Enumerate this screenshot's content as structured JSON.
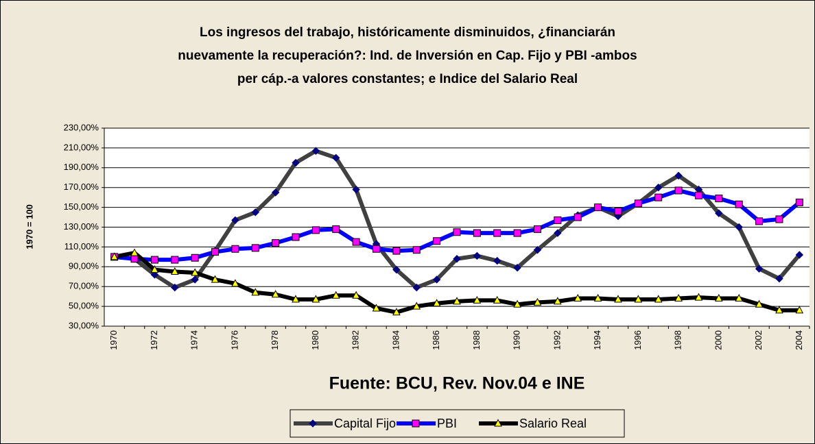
{
  "chart_data": {
    "type": "line",
    "title": [
      "Los ingresos del trabajo, históricamente disminuidos, ¿financiarán",
      "nuevamente la recuperación?: Ind. de Inversión en Cap. Fijo y PBI -ambos",
      "per cáp.-a valores constantes; e Indice del Salario Real"
    ],
    "y_label": "1970 = 100",
    "x_label": "Fuente: BCU, Rev. Nov.04 e INE",
    "categories": [
      "1970",
      null,
      "1972",
      null,
      "1974",
      null,
      "1976",
      null,
      "1978",
      null,
      "1980",
      null,
      "1982",
      null,
      "1984",
      null,
      "1986",
      null,
      "1988",
      null,
      "1990",
      null,
      "1992",
      null,
      "1994",
      null,
      "1996",
      null,
      "1998",
      null,
      "2000",
      null,
      "2002",
      null,
      "2004"
    ],
    "series": [
      {
        "name": "Capital Fijo",
        "color": "#404040",
        "marker": "diamond",
        "marker_color": "#000080",
        "values": [
          100,
          98,
          82,
          69,
          77,
          106,
          137,
          145,
          165,
          195,
          207,
          200,
          168,
          113,
          87,
          69,
          77,
          98,
          101,
          96,
          89,
          107,
          124,
          142,
          150,
          141,
          154,
          170,
          182,
          168,
          144,
          130,
          88,
          78,
          102
        ]
      },
      {
        "name": "PBI",
        "color": "#0000ff",
        "marker": "square",
        "marker_color": "#ff00ff",
        "values": [
          100,
          98,
          97,
          97,
          99,
          105,
          108,
          109,
          114,
          120,
          127,
          128,
          115,
          108,
          106,
          107,
          116,
          125,
          124,
          124,
          124,
          128,
          137,
          140,
          150,
          146,
          154,
          160,
          167,
          162,
          159,
          153,
          136,
          138,
          155
        ]
      },
      {
        "name": "Salario Real",
        "color": "#000000",
        "marker": "triangle",
        "marker_color": "#ffff00",
        "values": [
          100,
          104,
          87,
          85,
          84,
          77,
          73,
          64,
          62,
          57,
          57,
          61,
          61,
          48,
          44,
          50,
          53,
          55,
          56,
          56,
          52,
          54,
          55,
          58,
          58,
          57,
          57,
          57,
          58,
          59,
          58,
          58,
          52,
          46,
          46
        ]
      }
    ],
    "ylim": [
      30,
      230
    ],
    "yticks": [
      {
        "value": 30,
        "label": "30,00%"
      },
      {
        "value": 50,
        "label": "50,00%"
      },
      {
        "value": 70,
        "label": "70,00%"
      },
      {
        "value": 90,
        "label": "90,00%"
      },
      {
        "value": 110,
        "label": "110,00%"
      },
      {
        "value": 130,
        "label": "130,00%"
      },
      {
        "value": 150,
        "label": "150,00%"
      },
      {
        "value": 170,
        "label": "170,00%"
      },
      {
        "value": 190,
        "label": "190,00%"
      },
      {
        "value": 210,
        "label": "210,00%"
      },
      {
        "value": 230,
        "label": "230,00%"
      }
    ],
    "grid": true,
    "legend": "bottom"
  }
}
